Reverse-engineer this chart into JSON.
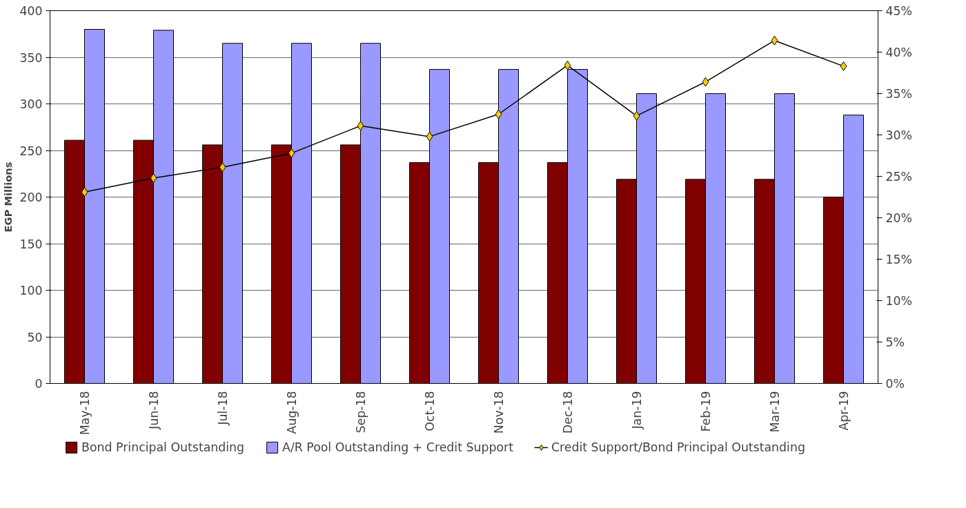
{
  "chart_data": {
    "type": "bar",
    "ylabel": "EGP Millions",
    "categories": [
      "May-18",
      "Jun-18",
      "Jul-18",
      "Aug-18",
      "Sep-18",
      "Oct-18",
      "Nov-18",
      "Dec-18",
      "Jan-19",
      "Feb-19",
      "Mar-19",
      "Apr-19"
    ],
    "series": [
      {
        "name": "Bond Principal Outstanding",
        "color": "#800000",
        "values": [
          261,
          261,
          256,
          256,
          256,
          237,
          237,
          237,
          219,
          219,
          219,
          200
        ]
      },
      {
        "name": "A/R Pool Outstanding + Credit Support",
        "color": "#9999ff",
        "values": [
          380,
          379,
          365,
          365,
          365,
          337,
          337,
          337,
          311,
          311,
          311,
          288
        ]
      },
      {
        "name": "Credit Support/Bond Principal Outstanding",
        "type": "line",
        "axis": "y2",
        "color": "#000000",
        "marker": "diamond",
        "values": [
          23.1,
          24.8,
          26.1,
          27.8,
          31.1,
          29.8,
          32.5,
          38.4,
          32.3,
          36.4,
          41.4,
          38.3
        ]
      }
    ],
    "ylim": [
      0,
      400
    ],
    "yticks": [
      0,
      50,
      100,
      150,
      200,
      250,
      300,
      350,
      400
    ],
    "y2lim": [
      0,
      45
    ],
    "y2ticks": [
      {
        "value": 0,
        "label": "0%"
      },
      {
        "value": 5,
        "label": "5%"
      },
      {
        "value": 10,
        "label": "10%"
      },
      {
        "value": 15,
        "label": "15%"
      },
      {
        "value": 20,
        "label": "20%"
      },
      {
        "value": 25,
        "label": "25%"
      },
      {
        "value": 30,
        "label": "30%"
      },
      {
        "value": 35,
        "label": "35%"
      },
      {
        "value": 40,
        "label": "40%"
      },
      {
        "value": 45,
        "label": "45%"
      }
    ],
    "grid": "y",
    "legend": "bottom"
  }
}
